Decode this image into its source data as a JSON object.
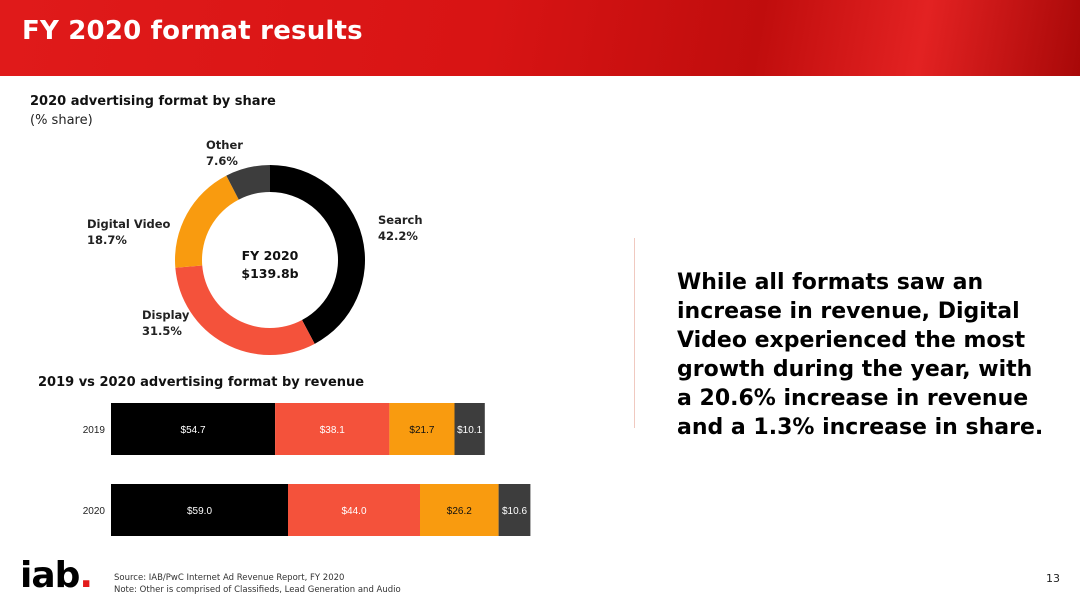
{
  "header": {
    "title": "FY 2020 format results"
  },
  "donut": {
    "title": "2020 advertising format by share",
    "subtitle": "(% share)",
    "center_line1": "FY 2020",
    "center_line2": "$139.8b",
    "labels": {
      "other": {
        "name": "Other",
        "pct": "7.6%"
      },
      "search": {
        "name": "Search",
        "pct": "42.2%"
      },
      "digital_video": {
        "name": "Digital Video",
        "pct": "18.7%"
      },
      "display": {
        "name": "Display",
        "pct": "31.5%"
      }
    }
  },
  "bars": {
    "title": "2019 vs 2020  advertising format by revenue"
  },
  "callout": "While all formats saw an increase in revenue, Digital Video experienced the most growth during the year, with a 20.6% increase in revenue and a 1.3% increase in share.",
  "footer": {
    "logo_main": "iab",
    "logo_dot": ".",
    "source": "Source: IAB/PwC Internet Ad Revenue Report, FY 2020",
    "note": "Note: Other is comprised of Classifieds, Lead Generation and Audio",
    "page": "13"
  },
  "colors": {
    "search": "#000000",
    "display": "#f4523b",
    "digital_video": "#f99b0f",
    "other": "#3d3d3d",
    "header": "#d81414"
  },
  "chart_data": [
    {
      "type": "pie",
      "title": "2020 advertising format by share",
      "subtitle": "(% share)",
      "center": "FY 2020 $139.8b",
      "categories": [
        "Search",
        "Display",
        "Digital Video",
        "Other"
      ],
      "values": [
        42.2,
        31.5,
        18.7,
        7.6
      ],
      "colors": [
        "#000000",
        "#f4523b",
        "#f99b0f",
        "#3d3d3d"
      ]
    },
    {
      "type": "bar",
      "orientation": "horizontal",
      "stacked": true,
      "title": "2019 vs 2020  advertising format by revenue",
      "categories": [
        "2019",
        "2020"
      ],
      "series": [
        {
          "values": [
            54.7,
            59.0
          ],
          "labels": [
            "$54.7",
            "$59.0"
          ],
          "color": "#000000"
        },
        {
          "values": [
            38.1,
            44.0
          ],
          "labels": [
            "$38.1",
            "$44.0"
          ],
          "color": "#f4523b"
        },
        {
          "values": [
            21.7,
            26.2
          ],
          "labels": [
            "$21.7",
            "$26.2"
          ],
          "color": "#f99b0f"
        },
        {
          "values": [
            10.1,
            10.6
          ],
          "labels": [
            "$10.1",
            "$10.6"
          ],
          "color": "#3d3d3d"
        }
      ]
    }
  ]
}
